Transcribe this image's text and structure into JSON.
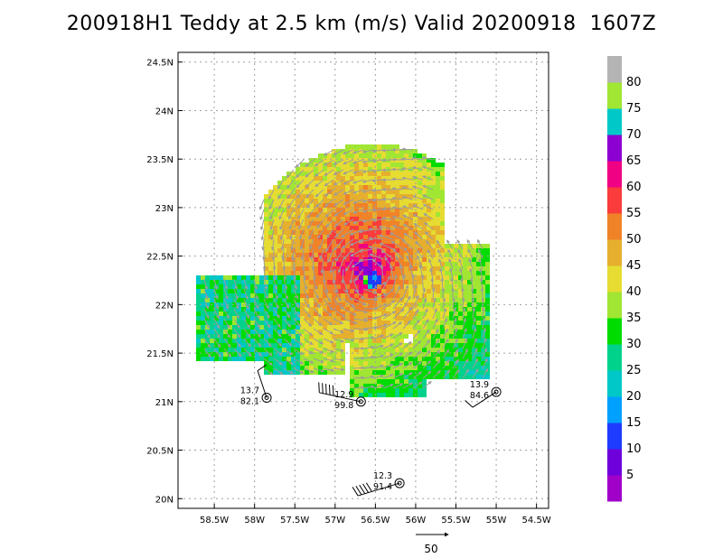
{
  "title": "200918H1 Teddy at 2.5 km (m/s) Valid 20200918  1607Z",
  "chart_data": {
    "type": "heatmap",
    "title": "200918H1 Teddy at 2.5 km (m/s) Valid 20200918  1607Z",
    "x_ticks": [
      "58.5W",
      "58W",
      "57.5W",
      "57W",
      "56.5W",
      "56W",
      "55.5W",
      "55W",
      "54.5W"
    ],
    "y_ticks": [
      "20N",
      "20.5N",
      "21N",
      "21.5N",
      "22N",
      "22.5N",
      "23N",
      "23.5N",
      "24N",
      "24.5N"
    ],
    "xlim": [
      -58.95,
      -54.35
    ],
    "ylim": [
      19.9,
      24.6
    ],
    "storm_center": {
      "lon": -56.56,
      "lat": 22.28
    },
    "grid": true,
    "colorbar": {
      "labels": [
        "5",
        "10",
        "15",
        "20",
        "25",
        "30",
        "35",
        "40",
        "45",
        "50",
        "55",
        "60",
        "65",
        "70",
        "75",
        "80"
      ],
      "colors": [
        "#a000c8",
        "#6e00dc",
        "#1e3cff",
        "#00a0ff",
        "#00c8c8",
        "#00d28c",
        "#00dc00",
        "#a0e632",
        "#e6dc32",
        "#e6af2d",
        "#f08228",
        "#fa3c3c",
        "#f00082",
        "#8c00d2",
        "#00c8c8",
        "#a0e632",
        "#b4b4b4"
      ]
    },
    "observations": [
      {
        "lon": -57.85,
        "lat": 21.04,
        "top": "13.7",
        "bottom": "82.1"
      },
      {
        "lon": -56.68,
        "lat": 21.0,
        "top": "12.9",
        "bottom": "99.8"
      },
      {
        "lon": -55.0,
        "lat": 21.1,
        "top": "13.9",
        "bottom": "84.6"
      },
      {
        "lon": -56.2,
        "lat": 20.16,
        "top": "12.3",
        "bottom": "91.4"
      }
    ],
    "reference_vector": {
      "label": "50"
    }
  }
}
